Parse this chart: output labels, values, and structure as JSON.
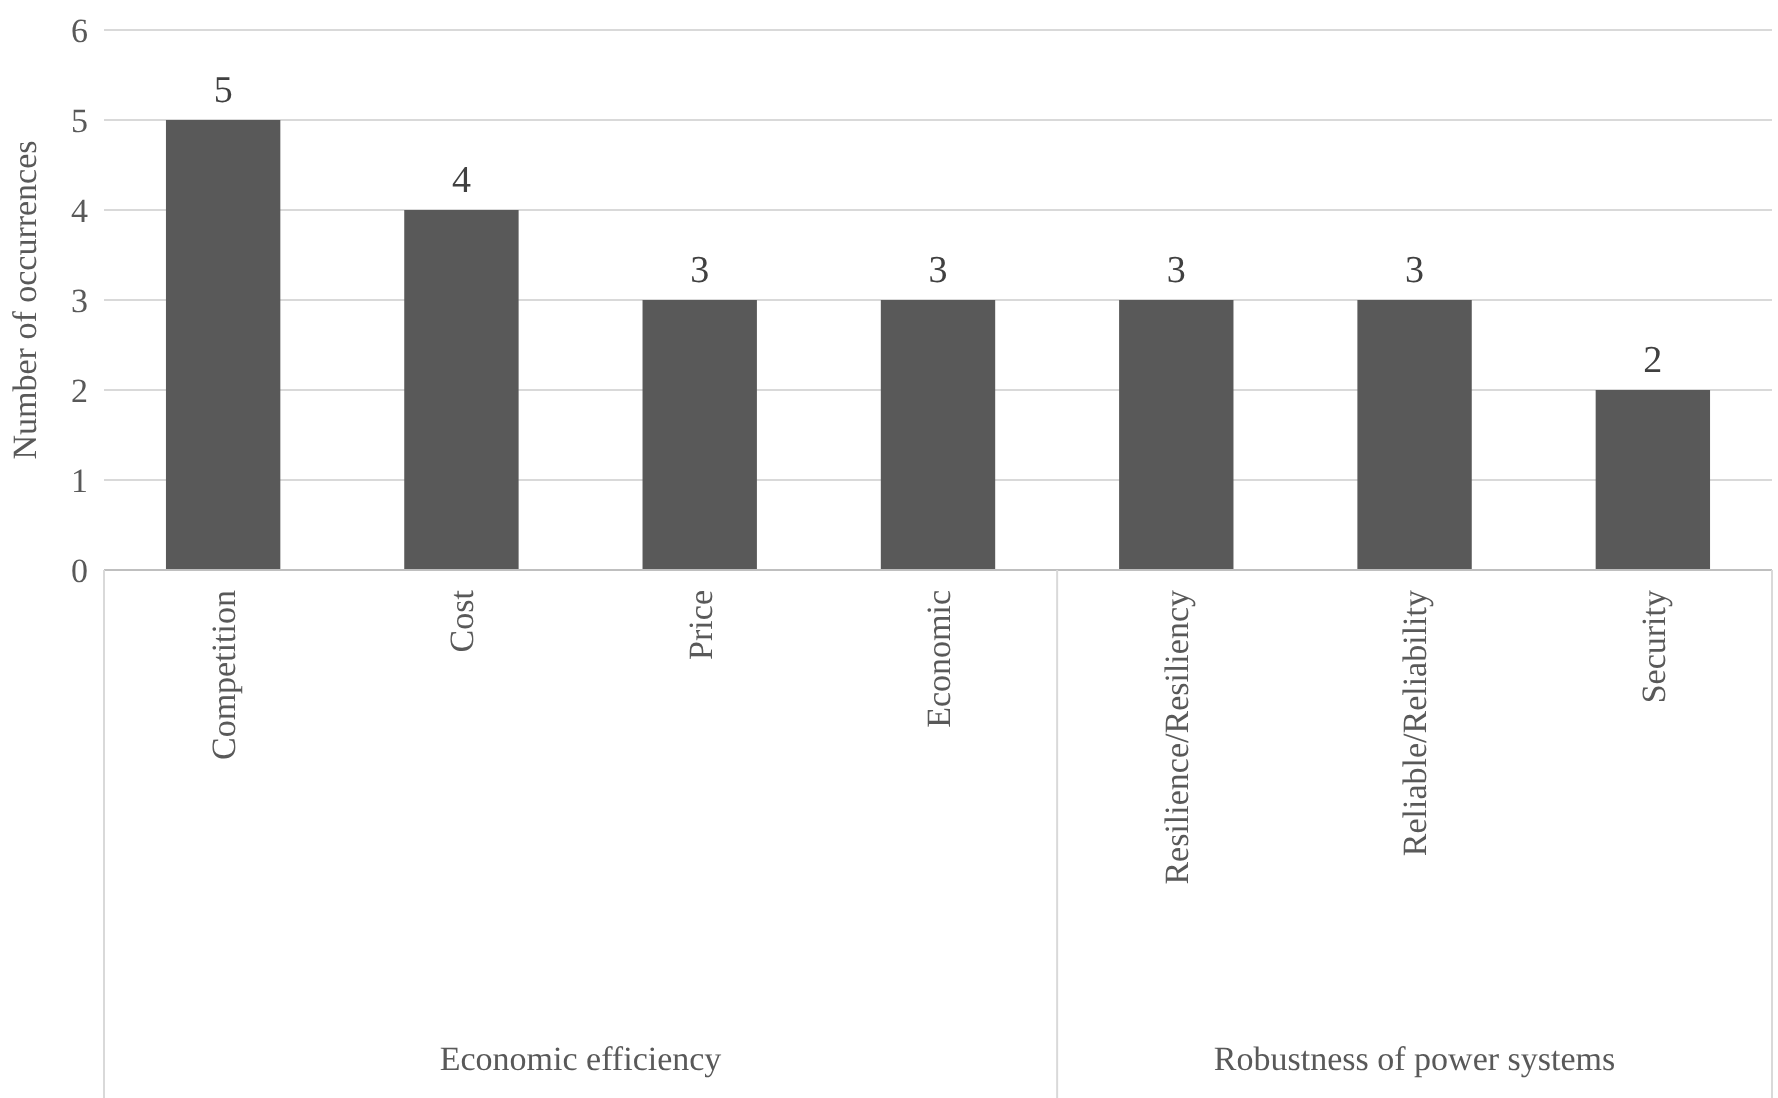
{
  "chart_data": {
    "type": "bar",
    "ylabel": "Number of occurrences",
    "categories": [
      "Competition",
      "Cost",
      "Price",
      "Economic",
      "Resilience/Resiliency",
      "Reliable/Reliability",
      "Security"
    ],
    "values": [
      5,
      4,
      3,
      3,
      3,
      3,
      2
    ],
    "color": "#595959",
    "ylim": [
      0,
      6
    ],
    "yticks": [
      0,
      1,
      2,
      3,
      4,
      5,
      6
    ],
    "grid": "y",
    "data_labels": true,
    "annotations": [
      "Economic efficiency",
      "Robustness of power systems"
    ]
  }
}
